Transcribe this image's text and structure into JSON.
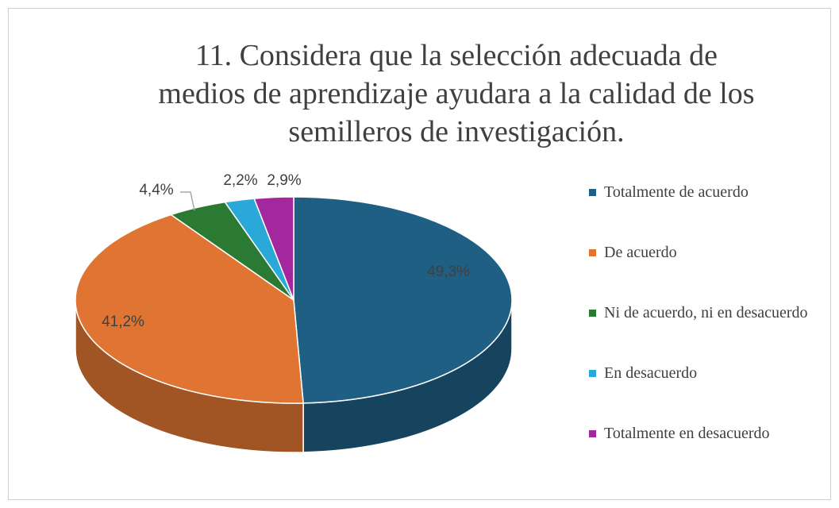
{
  "chart_data": {
    "type": "pie",
    "title": [
      "11. Considera que la selección adecuada de",
      "medios de aprendizaje ayudara a la calidad de los",
      "semilleros de investigación."
    ],
    "categories": [
      "Totalmente de acuerdo",
      "De acuerdo",
      "Ni de acuerdo, ni en desacuerdo",
      "En desacuerdo",
      "Totalmente en desacuerdo"
    ],
    "values": [
      49.3,
      41.2,
      4.4,
      2.2,
      2.9
    ],
    "value_labels": [
      "49,3%",
      "41,2%",
      "4,4%",
      "2,2%",
      "2,9%"
    ],
    "colors": [
      "#1f5f84",
      "#e07432",
      "#2a7a34",
      "#2aa8d8",
      "#a3289e"
    ],
    "legend": "right"
  }
}
